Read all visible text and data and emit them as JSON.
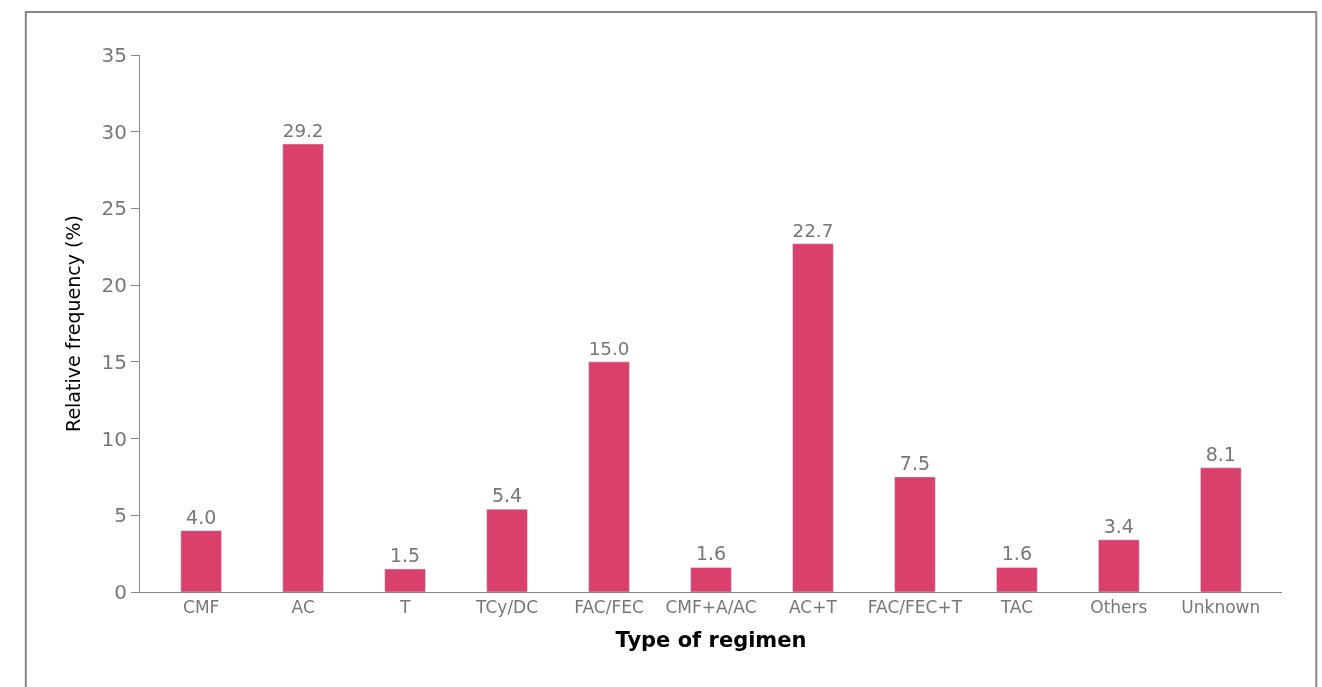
{
  "chart_data": {
    "type": "bar",
    "xlabel": "Type of regimen",
    "ylabel": "Relative frequency (%)",
    "categories": [
      "CMF",
      "AC",
      "T",
      "TCy/DC",
      "FAC/FEC",
      "CMF+A/AC",
      "AC+T",
      "FAC/FEC+T",
      "TAC",
      "Others",
      "Unknown"
    ],
    "values": [
      4.0,
      29.2,
      1.5,
      5.4,
      15.0,
      1.6,
      22.7,
      7.5,
      1.6,
      3.4,
      8.1
    ],
    "value_labels": [
      "4.0",
      "29.2",
      "1.5",
      "5.4",
      "15.0",
      "1.6",
      "22.7",
      "7.5",
      "1.6",
      "3.4",
      "8.1"
    ],
    "color": "#d9406b",
    "ylim": [
      0,
      35
    ],
    "yticks": [
      0,
      5,
      10,
      15,
      20,
      25,
      30,
      35
    ]
  }
}
